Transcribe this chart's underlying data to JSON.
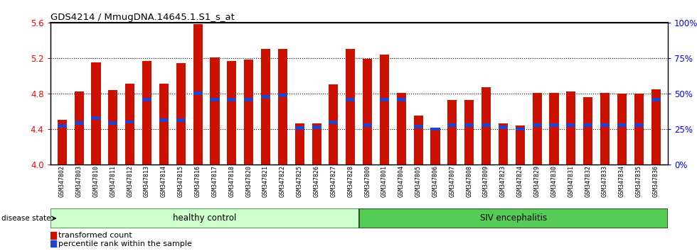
{
  "title": "GDS4214 / MmugDNA.14645.1.S1_s_at",
  "samples": [
    "GSM347802",
    "GSM347803",
    "GSM347810",
    "GSM347811",
    "GSM347812",
    "GSM347813",
    "GSM347814",
    "GSM347815",
    "GSM347816",
    "GSM347817",
    "GSM347818",
    "GSM347820",
    "GSM347821",
    "GSM347822",
    "GSM347825",
    "GSM347826",
    "GSM347827",
    "GSM347828",
    "GSM347800",
    "GSM347801",
    "GSM347804",
    "GSM347805",
    "GSM347806",
    "GSM347807",
    "GSM347808",
    "GSM347809",
    "GSM347823",
    "GSM347824",
    "GSM347829",
    "GSM347830",
    "GSM347831",
    "GSM347832",
    "GSM347833",
    "GSM347834",
    "GSM347835",
    "GSM347836"
  ],
  "bar_heights": [
    4.5,
    4.82,
    5.15,
    4.84,
    4.91,
    5.17,
    4.91,
    5.14,
    5.58,
    5.21,
    5.17,
    5.18,
    5.3,
    5.3,
    4.46,
    4.46,
    4.9,
    5.3,
    5.19,
    5.24,
    4.81,
    4.55,
    4.4,
    4.73,
    4.73,
    4.87,
    4.46,
    4.44,
    4.81,
    4.81,
    4.82,
    4.76,
    4.81,
    4.8,
    4.8,
    4.85
  ],
  "blue_marker_pos": [
    4.435,
    4.465,
    4.52,
    4.467,
    4.478,
    4.728,
    4.5,
    4.5,
    4.8,
    4.73,
    4.73,
    4.73,
    4.76,
    4.78,
    4.41,
    4.418,
    4.472,
    4.73,
    4.44,
    4.73,
    4.73,
    4.428,
    4.398,
    4.44,
    4.44,
    4.44,
    4.418,
    4.398,
    4.44,
    4.44,
    4.44,
    4.44,
    4.44,
    4.44,
    4.44,
    4.73
  ],
  "bar_color": "#cc1100",
  "blue_color": "#2244cc",
  "ymin": 4.0,
  "ymax": 5.6,
  "yticks": [
    4.0,
    4.4,
    4.8,
    5.2,
    5.6
  ],
  "right_ytick_labels": [
    "0%",
    "25%",
    "50%",
    "75%",
    "100%"
  ],
  "healthy_control_count": 18,
  "siv_count": 18,
  "group_label_healthy": "healthy control",
  "group_label_siv": "SIV encephalitis",
  "disease_state_label": "disease state",
  "legend_red": "transformed count",
  "legend_blue": "percentile rank within the sample",
  "healthy_bg": "#ccffcc",
  "siv_bg": "#55cc55",
  "bg_color": "#d8d8d8"
}
